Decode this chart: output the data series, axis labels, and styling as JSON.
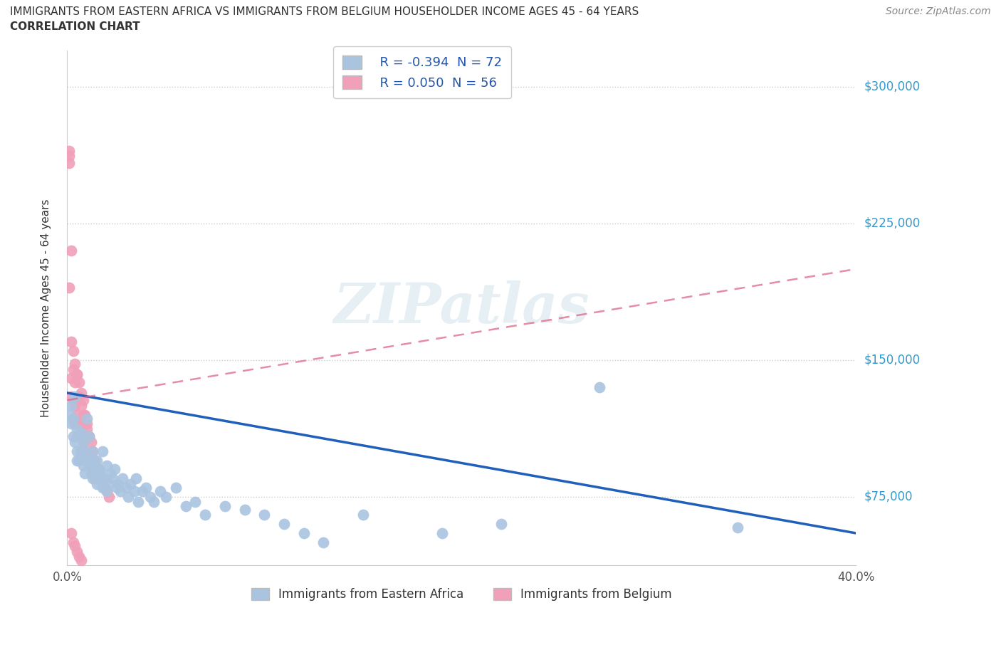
{
  "title_line1": "IMMIGRANTS FROM EASTERN AFRICA VS IMMIGRANTS FROM BELGIUM HOUSEHOLDER INCOME AGES 45 - 64 YEARS",
  "title_line2": "CORRELATION CHART",
  "source": "Source: ZipAtlas.com",
  "ylabel": "Householder Income Ages 45 - 64 years",
  "xlim": [
    0.0,
    0.4
  ],
  "ylim": [
    37500,
    320000
  ],
  "yticks": [
    75000,
    150000,
    225000,
    300000
  ],
  "ytick_labels": [
    "$75,000",
    "$150,000",
    "$225,000",
    "$300,000"
  ],
  "xticks": [
    0.0,
    0.08,
    0.16,
    0.24,
    0.32,
    0.4
  ],
  "xtick_labels": [
    "0.0%",
    "",
    "",
    "",
    "",
    "40.0%"
  ],
  "watermark": "ZIPatlas",
  "series1_name": "Immigrants from Eastern Africa",
  "series1_R": -0.394,
  "series1_N": 72,
  "series1_color": "#aac4e0",
  "series1_edge_color": "#88aacc",
  "series1_line_color": "#2060bb",
  "series2_name": "Immigrants from Belgium",
  "series2_R": 0.05,
  "series2_N": 56,
  "series2_color": "#f0a0b8",
  "series2_edge_color": "#dd8899",
  "series2_line_color": "#dd6688",
  "grid_color": "#cccccc",
  "background_color": "#ffffff",
  "series1_x": [
    0.001,
    0.002,
    0.002,
    0.003,
    0.003,
    0.004,
    0.004,
    0.005,
    0.005,
    0.005,
    0.006,
    0.006,
    0.007,
    0.007,
    0.008,
    0.008,
    0.009,
    0.009,
    0.01,
    0.01,
    0.011,
    0.011,
    0.012,
    0.012,
    0.013,
    0.013,
    0.014,
    0.015,
    0.015,
    0.016,
    0.016,
    0.017,
    0.018,
    0.018,
    0.019,
    0.02,
    0.02,
    0.021,
    0.022,
    0.023,
    0.024,
    0.025,
    0.026,
    0.027,
    0.028,
    0.03,
    0.031,
    0.032,
    0.034,
    0.035,
    0.036,
    0.038,
    0.04,
    0.042,
    0.044,
    0.047,
    0.05,
    0.055,
    0.06,
    0.065,
    0.07,
    0.08,
    0.09,
    0.1,
    0.11,
    0.12,
    0.13,
    0.15,
    0.19,
    0.22,
    0.27,
    0.34
  ],
  "series1_y": [
    120000,
    125000,
    115000,
    108000,
    118000,
    105000,
    130000,
    100000,
    112000,
    95000,
    108000,
    95000,
    110000,
    100000,
    105000,
    92000,
    100000,
    88000,
    118000,
    95000,
    92000,
    108000,
    95000,
    88000,
    100000,
    85000,
    92000,
    95000,
    82000,
    90000,
    85000,
    88000,
    100000,
    80000,
    85000,
    92000,
    78000,
    82000,
    88000,
    85000,
    90000,
    80000,
    82000,
    78000,
    85000,
    80000,
    75000,
    82000,
    78000,
    85000,
    72000,
    78000,
    80000,
    75000,
    72000,
    78000,
    75000,
    80000,
    70000,
    72000,
    65000,
    70000,
    68000,
    65000,
    60000,
    55000,
    50000,
    65000,
    55000,
    60000,
    135000,
    58000
  ],
  "series2_x": [
    0.001,
    0.001,
    0.001,
    0.002,
    0.002,
    0.002,
    0.003,
    0.003,
    0.003,
    0.004,
    0.004,
    0.004,
    0.005,
    0.005,
    0.005,
    0.006,
    0.006,
    0.007,
    0.007,
    0.007,
    0.008,
    0.008,
    0.009,
    0.009,
    0.01,
    0.01,
    0.011,
    0.011,
    0.012,
    0.013,
    0.013,
    0.014,
    0.014,
    0.015,
    0.016,
    0.017,
    0.018,
    0.019,
    0.02,
    0.021,
    0.001,
    0.002,
    0.003,
    0.004,
    0.005,
    0.006,
    0.007,
    0.008,
    0.009,
    0.01,
    0.002,
    0.003,
    0.004,
    0.005,
    0.006,
    0.007
  ],
  "series2_y": [
    265000,
    262000,
    258000,
    210000,
    140000,
    130000,
    145000,
    128000,
    118000,
    138000,
    125000,
    115000,
    142000,
    120000,
    108000,
    130000,
    115000,
    125000,
    110000,
    100000,
    120000,
    105000,
    115000,
    100000,
    112000,
    95000,
    108000,
    92000,
    105000,
    100000,
    88000,
    95000,
    85000,
    90000,
    88000,
    85000,
    82000,
    80000,
    78000,
    75000,
    190000,
    160000,
    155000,
    148000,
    142000,
    138000,
    132000,
    128000,
    120000,
    115000,
    55000,
    50000,
    48000,
    45000,
    42000,
    40000
  ],
  "blue_line_x": [
    0.0,
    0.4
  ],
  "blue_line_y": [
    132000,
    55000
  ],
  "pink_line_x": [
    0.0,
    0.4
  ],
  "pink_line_y": [
    128000,
    200000
  ]
}
